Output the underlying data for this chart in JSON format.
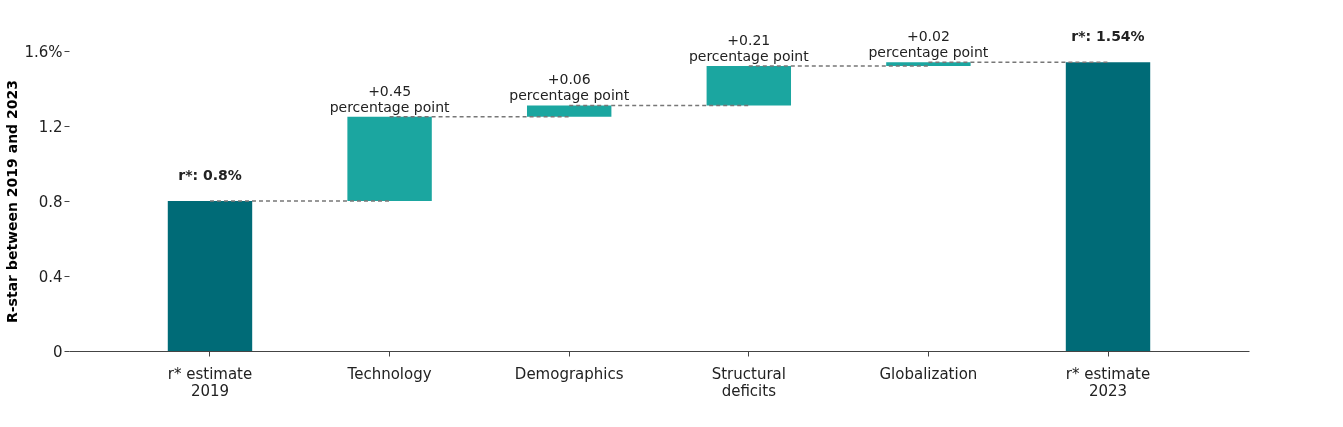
{
  "chart_data": {
    "type": "bar",
    "ylabel": "R-star between 2019 and 2023",
    "categories": [
      "r* estimate\n2019",
      "Technology",
      "Demographics",
      "Structural\ndeficits",
      "Globalization",
      "r* estimate\n2023"
    ],
    "values": [
      0.8,
      0.45,
      0.06,
      0.21,
      0.02,
      1.54
    ],
    "base": [
      0,
      0.8,
      1.25,
      1.31,
      1.52,
      0
    ],
    "colors": [
      "#006b77",
      "#1ba6a0",
      "#1ba6a0",
      "#1ba6a0",
      "#1ba6a0",
      "#006b77"
    ],
    "value_labels": [
      "r*: 0.8%",
      "+0.45\npercentage point",
      "+0.06\npercentage point",
      "+0.21\npercentage point",
      "+0.02\npercentage point",
      "r*: 1.54%"
    ],
    "ylim": [
      0,
      1.6
    ],
    "yticks": [
      0,
      0.4,
      0.8,
      1.2,
      {
        "value": 1.6,
        "label": "1.6%"
      }
    ],
    "grid": false
  }
}
